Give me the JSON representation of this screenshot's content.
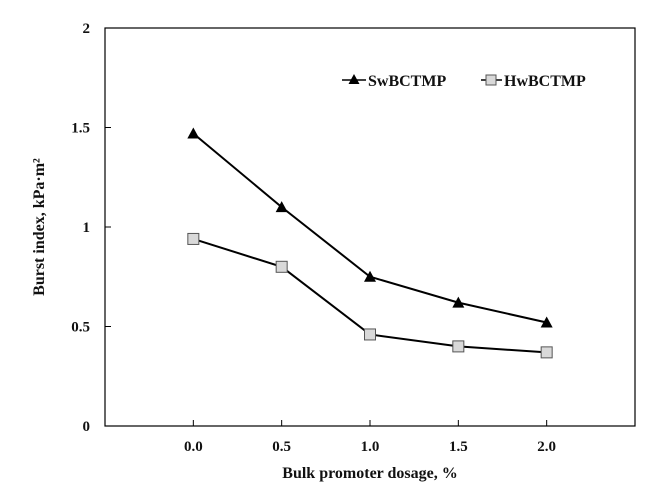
{
  "chart_data": {
    "type": "line",
    "title": "",
    "xlabel": "Bulk promoter dosage, %",
    "ylabel": "Burst index, kPa·m²",
    "x": [
      0.0,
      0.5,
      1.0,
      1.5,
      2.0
    ],
    "x_tick_labels": [
      "0.0",
      "0.5",
      "1.0",
      "1.5",
      "2.0"
    ],
    "xlim": [
      -0.5,
      2.5
    ],
    "ylim": [
      0,
      2
    ],
    "y_ticks": [
      0,
      0.5,
      1,
      1.5,
      2
    ],
    "y_tick_labels": [
      "0",
      "0.5",
      "1",
      "1.5",
      "2"
    ],
    "grid": false,
    "legend_position": "top-right",
    "series": [
      {
        "name": "SwBCTMP",
        "marker": "triangle",
        "color": "#000000",
        "marker_fill": "#000000",
        "values": [
          1.47,
          1.1,
          0.75,
          0.62,
          0.52
        ]
      },
      {
        "name": "HwBCTMP",
        "marker": "square",
        "color": "#000000",
        "marker_fill": "#d9d9d9",
        "values": [
          0.94,
          0.8,
          0.46,
          0.4,
          0.37
        ]
      }
    ]
  }
}
